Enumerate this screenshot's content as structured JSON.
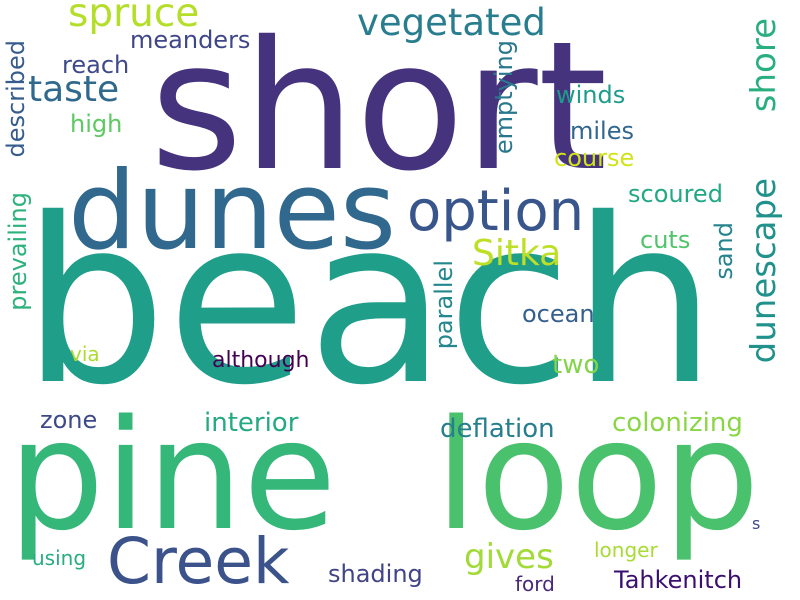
{
  "words": [
    {
      "text": "short",
      "color": "#46337e"
    },
    {
      "text": "beach",
      "color": "#1f9e89"
    },
    {
      "text": "pine",
      "color": "#35b779"
    },
    {
      "text": "loop",
      "color": "#4ac16d"
    },
    {
      "text": "dunes",
      "color": "#31688e"
    },
    {
      "text": "Creek",
      "color": "#3b528b"
    },
    {
      "text": "option",
      "color": "#39568c"
    },
    {
      "text": "spruce",
      "color": "#b5de2b"
    },
    {
      "text": "vegetated",
      "color": "#287d8e"
    },
    {
      "text": "taste",
      "color": "#30698e"
    },
    {
      "text": "shore",
      "color": "#29af7f"
    },
    {
      "text": "dunescape",
      "color": "#21918c"
    },
    {
      "text": "Sitka",
      "color": "#bddf26"
    },
    {
      "text": "gives",
      "color": "#a2da37"
    },
    {
      "text": "meanders",
      "color": "#3f4788"
    },
    {
      "text": "reach",
      "color": "#3e4a89"
    },
    {
      "text": "high",
      "color": "#5ec962"
    },
    {
      "text": "described",
      "color": "#365c8d"
    },
    {
      "text": "emptying",
      "color": "#2a788e"
    },
    {
      "text": "winds",
      "color": "#1e9c89"
    },
    {
      "text": "miles",
      "color": "#31678e"
    },
    {
      "text": "course",
      "color": "#d2e21b"
    },
    {
      "text": "scoured",
      "color": "#22a884"
    },
    {
      "text": "cuts",
      "color": "#50c46a"
    },
    {
      "text": "sand",
      "color": "#25848e"
    },
    {
      "text": "prevailing",
      "color": "#2db27d"
    },
    {
      "text": "parallel",
      "color": "#23888e"
    },
    {
      "text": "ocean",
      "color": "#355f8d"
    },
    {
      "text": "via",
      "color": "#addc30"
    },
    {
      "text": "although",
      "color": "#440154"
    },
    {
      "text": "two",
      "color": "#84d44b"
    },
    {
      "text": "zone",
      "color": "#3e4989"
    },
    {
      "text": "interior",
      "color": "#24aa83"
    },
    {
      "text": "deflation",
      "color": "#277f8e"
    },
    {
      "text": "colonizing",
      "color": "#8bd646"
    },
    {
      "text": "using",
      "color": "#27ad81"
    },
    {
      "text": "longer",
      "color": "#a8db34"
    },
    {
      "text": "shading",
      "color": "#414487"
    },
    {
      "text": "ford",
      "color": "#482878"
    },
    {
      "text": "Tahkenitch",
      "color": "#3b0f70"
    },
    {
      "text": "s",
      "color": "#3e4989"
    }
  ]
}
